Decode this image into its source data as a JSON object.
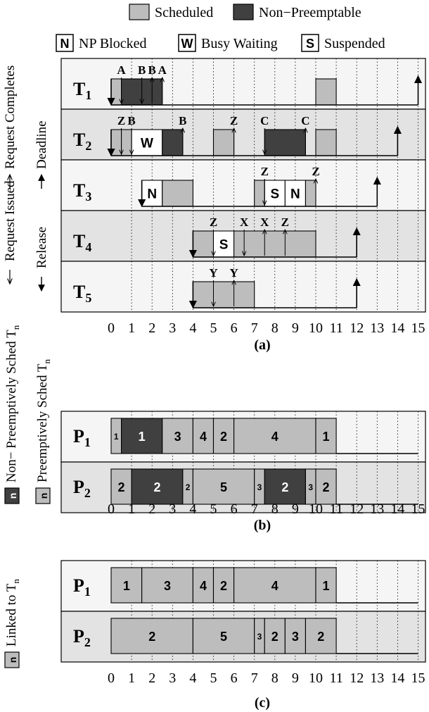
{
  "colors": {
    "scheduled": "#bdbdbd",
    "non_preemptable": "#404040",
    "row_light": "#f5f5f5",
    "row_dark": "#e3e3e3",
    "stroke": "#000000"
  },
  "legend": {
    "scheduled": "Scheduled",
    "non_preemptable": "Non−Preemptable",
    "np_blocked": {
      "letter": "N",
      "label": "NP Blocked"
    },
    "busy_waiting": {
      "letter": "W",
      "label": "Busy Waiting"
    },
    "suspended": {
      "letter": "S",
      "label": "Suspended"
    },
    "request_completes": "Request Completes",
    "deadline": "Deadline",
    "request_issued": "Request Issued",
    "release": "Release",
    "non_preemptively_sched": "Non− Preemptively Sched T",
    "preemptively_sched": "Preemptively Sched T",
    "linked_to": "Linked to T",
    "sub_n": "n",
    "swatch_letter": "n"
  },
  "x_ticks": [
    "0",
    "1",
    "2",
    "3",
    "4",
    "5",
    "6",
    "7",
    "8",
    "9",
    "10",
    "11",
    "12",
    "13",
    "14",
    "15"
  ],
  "panels": {
    "a": {
      "caption": "(a)",
      "tasks": [
        {
          "name": "T",
          "sub": "1",
          "blocks": [
            {
              "s": 0,
              "e": 0.5,
              "t": "g"
            },
            {
              "s": 0.5,
              "e": 2.5,
              "t": "d"
            },
            {
              "s": 10,
              "e": 11,
              "t": "g"
            }
          ],
          "release": 0,
          "deadline": 15,
          "labels": [
            {
              "x": 0.5,
              "t": "A"
            },
            {
              "x": 1.5,
              "t": "B"
            },
            {
              "x": 2.0,
              "t": "B"
            },
            {
              "x": 2.5,
              "t": "A"
            }
          ],
          "down": [
            0.5,
            1.5
          ],
          "up": [
            2.0,
            2.5
          ]
        },
        {
          "name": "T",
          "sub": "2",
          "blocks": [
            {
              "s": 0,
              "e": 0.5,
              "t": "g"
            },
            {
              "s": 0.5,
              "e": 1,
              "t": "g"
            },
            {
              "s": 1,
              "e": 2.5,
              "t": "W"
            },
            {
              "s": 2.5,
              "e": 3.5,
              "t": "d"
            },
            {
              "s": 5,
              "e": 6,
              "t": "g"
            },
            {
              "s": 7.5,
              "e": 9.5,
              "t": "d"
            },
            {
              "s": 10,
              "e": 11,
              "t": "g"
            }
          ],
          "release": 0,
          "deadline": 14,
          "labels": [
            {
              "x": 0.5,
              "t": "Z"
            },
            {
              "x": 1.0,
              "t": "B"
            },
            {
              "x": 3.5,
              "t": "B"
            },
            {
              "x": 6,
              "t": "Z"
            },
            {
              "x": 7.5,
              "t": "C"
            },
            {
              "x": 9.5,
              "t": "C"
            }
          ],
          "down": [
            0.5,
            1.0,
            7.5
          ],
          "up": [
            3.5,
            6,
            9.5
          ]
        },
        {
          "name": "T",
          "sub": "3",
          "blocks": [
            {
              "s": 1.5,
              "e": 2.5,
              "t": "N"
            },
            {
              "s": 2.5,
              "e": 4,
              "t": "g"
            },
            {
              "s": 7,
              "e": 7.5,
              "t": "g"
            },
            {
              "s": 7.5,
              "e": 8.5,
              "t": "S"
            },
            {
              "s": 8.5,
              "e": 9.5,
              "t": "N"
            },
            {
              "s": 9.5,
              "e": 10,
              "t": "g"
            }
          ],
          "release": 1.5,
          "deadline": 13,
          "labels": [
            {
              "x": 7.5,
              "t": "Z"
            },
            {
              "x": 10,
              "t": "Z"
            }
          ],
          "down": [
            7.5
          ],
          "up": [
            10
          ]
        },
        {
          "name": "T",
          "sub": "4",
          "blocks": [
            {
              "s": 4,
              "e": 5,
              "t": "g"
            },
            {
              "s": 5,
              "e": 6,
              "t": "S"
            },
            {
              "s": 6,
              "e": 10,
              "t": "g"
            }
          ],
          "release": 4,
          "deadline": 12,
          "labels": [
            {
              "x": 5,
              "t": "Z"
            },
            {
              "x": 6.5,
              "t": "X"
            },
            {
              "x": 7.5,
              "t": "X"
            },
            {
              "x": 8.5,
              "t": "Z"
            }
          ],
          "down": [
            5,
            6.5
          ],
          "up": [
            7.5,
            8.5
          ]
        },
        {
          "name": "T",
          "sub": "5",
          "blocks": [
            {
              "s": 4,
              "e": 7,
              "t": "g"
            }
          ],
          "release": 4,
          "deadline": 12,
          "labels": [
            {
              "x": 5,
              "t": "Y"
            },
            {
              "x": 6,
              "t": "Y"
            }
          ],
          "down": [
            5
          ],
          "up": [
            6
          ]
        }
      ]
    },
    "b": {
      "caption": "(b)",
      "processors": [
        {
          "name": "P",
          "sub": "1",
          "blocks": [
            {
              "s": 0,
              "e": 0.5,
              "t": "g",
              "n": "1",
              "small": true
            },
            {
              "s": 0.5,
              "e": 2.5,
              "t": "d",
              "n": "1"
            },
            {
              "s": 2.5,
              "e": 4,
              "t": "g",
              "n": "3"
            },
            {
              "s": 4,
              "e": 5,
              "t": "g",
              "n": "4"
            },
            {
              "s": 5,
              "e": 6,
              "t": "g",
              "n": "2"
            },
            {
              "s": 6,
              "e": 10,
              "t": "g",
              "n": "4"
            },
            {
              "s": 10,
              "e": 11,
              "t": "g",
              "n": "1"
            }
          ]
        },
        {
          "name": "P",
          "sub": "2",
          "blocks": [
            {
              "s": 0,
              "e": 1,
              "t": "g",
              "n": "2"
            },
            {
              "s": 1,
              "e": 3.5,
              "t": "d",
              "n": "2"
            },
            {
              "s": 3.5,
              "e": 4,
              "t": "g",
              "n": "2",
              "small": true
            },
            {
              "s": 4,
              "e": 7,
              "t": "g",
              "n": "5"
            },
            {
              "s": 7,
              "e": 7.5,
              "t": "g",
              "n": "3",
              "small": true
            },
            {
              "s": 7.5,
              "e": 9.5,
              "t": "d",
              "n": "2"
            },
            {
              "s": 9.5,
              "e": 10,
              "t": "g",
              "n": "3",
              "small": true
            },
            {
              "s": 10,
              "e": 11,
              "t": "g",
              "n": "2"
            }
          ]
        }
      ]
    },
    "c": {
      "caption": "(c)",
      "processors": [
        {
          "name": "P",
          "sub": "1",
          "blocks": [
            {
              "s": 0,
              "e": 1.5,
              "t": "g",
              "n": "1"
            },
            {
              "s": 1.5,
              "e": 4,
              "t": "g",
              "n": "3"
            },
            {
              "s": 4,
              "e": 5,
              "t": "g",
              "n": "4"
            },
            {
              "s": 5,
              "e": 6,
              "t": "g",
              "n": "2"
            },
            {
              "s": 6,
              "e": 10,
              "t": "g",
              "n": "4"
            },
            {
              "s": 10,
              "e": 11,
              "t": "g",
              "n": "1"
            }
          ]
        },
        {
          "name": "P",
          "sub": "2",
          "blocks": [
            {
              "s": 0,
              "e": 4,
              "t": "g",
              "n": "2"
            },
            {
              "s": 4,
              "e": 7,
              "t": "g",
              "n": "5"
            },
            {
              "s": 7,
              "e": 7.5,
              "t": "g",
              "n": "3",
              "small": true
            },
            {
              "s": 7.5,
              "e": 8.5,
              "t": "g",
              "n": "2"
            },
            {
              "s": 8.5,
              "e": 9.5,
              "t": "g",
              "n": "3"
            },
            {
              "s": 9.5,
              "e": 11,
              "t": "g",
              "n": "2"
            }
          ]
        }
      ]
    }
  }
}
